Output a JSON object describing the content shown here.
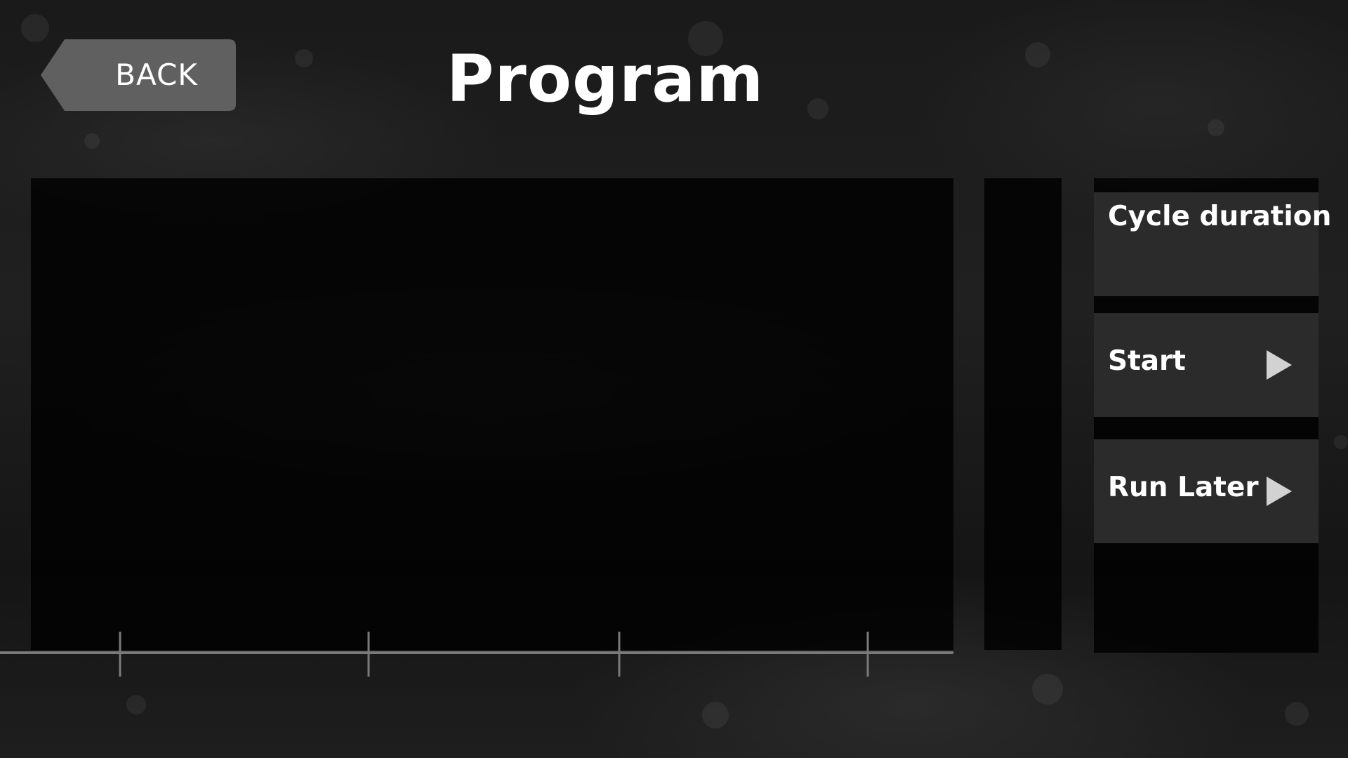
{
  "header": {
    "back_label": "BACK",
    "title": "Program"
  },
  "actions": {
    "cycle_duration_label": "Cycle duration",
    "start_label": "Start",
    "run_later_label": "Run Later"
  },
  "icons": {
    "back": "back-arrow-icon",
    "play": "play-icon"
  },
  "colors": {
    "background": "#1a1a1a",
    "panel": "#000000",
    "button": "#2b2b2b",
    "back_button": "#606060",
    "text": "#ffffff",
    "play_icon": "#d2d2d2",
    "axis": "#7a7a7a"
  },
  "timeline": {
    "tick_count": 4
  }
}
